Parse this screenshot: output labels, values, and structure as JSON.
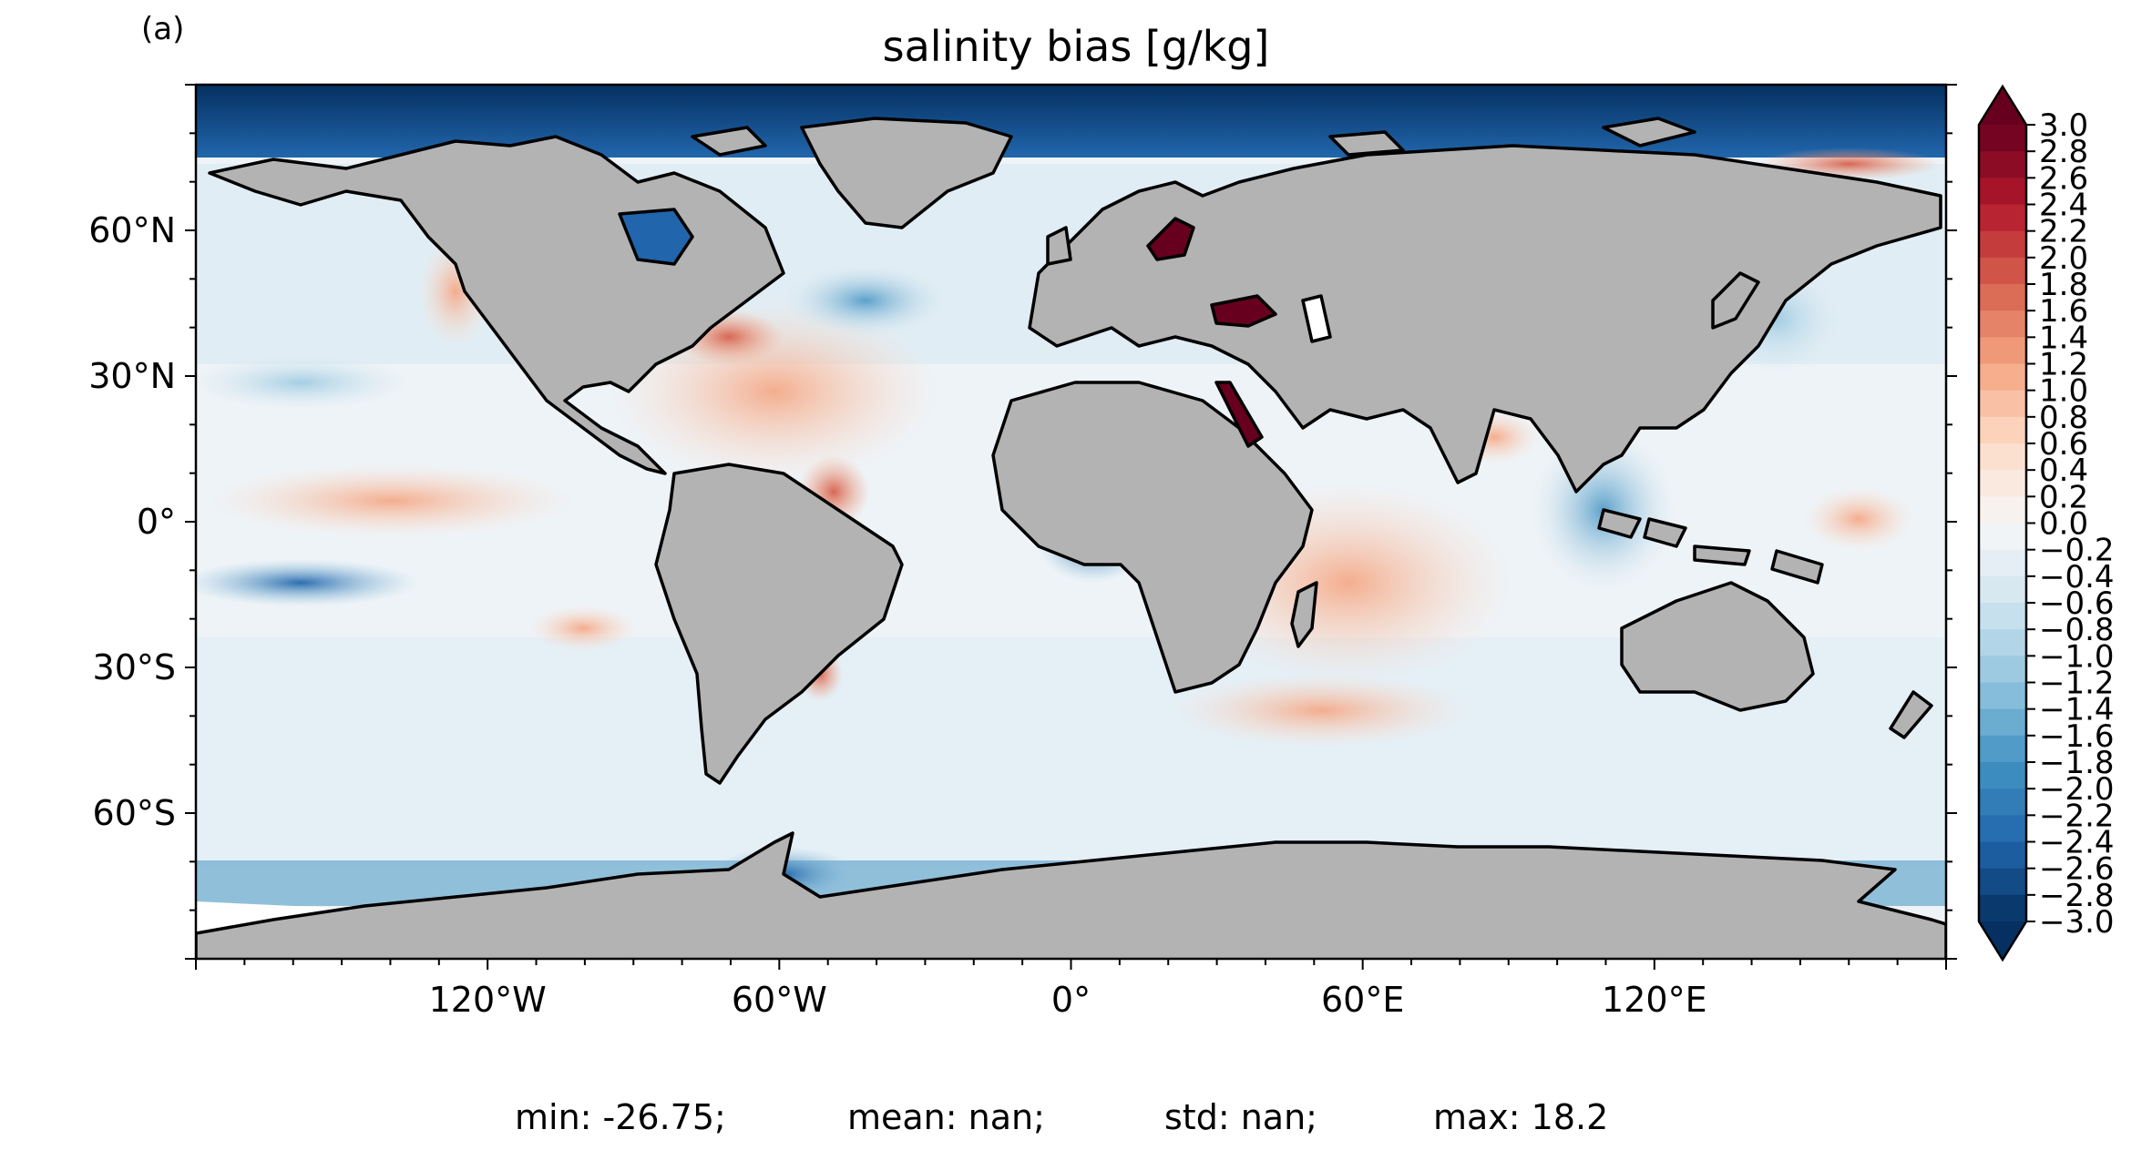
{
  "panel_label": "(a)",
  "title": "salinity bias [g/kg]",
  "colors": {
    "land": "#b3b3b3",
    "coast": "#000000",
    "ice": "#ffffff",
    "colormap": [
      "#053061",
      "#2166ac",
      "#4393c3",
      "#92c5de",
      "#d1e5f0",
      "#f7f7f7",
      "#fddbc7",
      "#f4a582",
      "#d6604d",
      "#b2182b",
      "#67001f"
    ]
  },
  "map": {
    "projection": "PlateCarree",
    "lon_range": [
      -180,
      180
    ],
    "lat_range": [
      -90,
      90
    ],
    "x_ticks": [
      {
        "lon": -120,
        "label": "120°W"
      },
      {
        "lon": -60,
        "label": "60°W"
      },
      {
        "lon": 0,
        "label": "0°"
      },
      {
        "lon": 60,
        "label": "60°E"
      },
      {
        "lon": 120,
        "label": "120°E"
      }
    ],
    "y_ticks": [
      {
        "lat": 60,
        "label": "60°N"
      },
      {
        "lat": 30,
        "label": "30°N"
      },
      {
        "lat": 0,
        "label": "0°"
      },
      {
        "lat": -30,
        "label": "30°S"
      },
      {
        "lat": -60,
        "label": "60°S"
      }
    ]
  },
  "colorbar": {
    "vmin": -3.0,
    "vmax": 3.0,
    "step": 0.2,
    "extend": "both",
    "labels": [
      "3.0",
      "2.8",
      "2.6",
      "2.4",
      "2.2",
      "2.0",
      "1.8",
      "1.6",
      "1.4",
      "1.2",
      "1.0",
      "0.8",
      "0.6",
      "0.4",
      "0.2",
      "0.0",
      "−0.2",
      "−0.4",
      "−0.6",
      "−0.8",
      "−1.0",
      "−1.2",
      "−1.4",
      "−1.6",
      "−1.8",
      "−2.0",
      "−2.2",
      "−2.4",
      "−2.6",
      "−2.8",
      "−3.0"
    ]
  },
  "stats": {
    "min": "min: -26.75;",
    "mean": "mean: nan;",
    "std": "std: nan;",
    "max": "max: 18.2"
  }
}
